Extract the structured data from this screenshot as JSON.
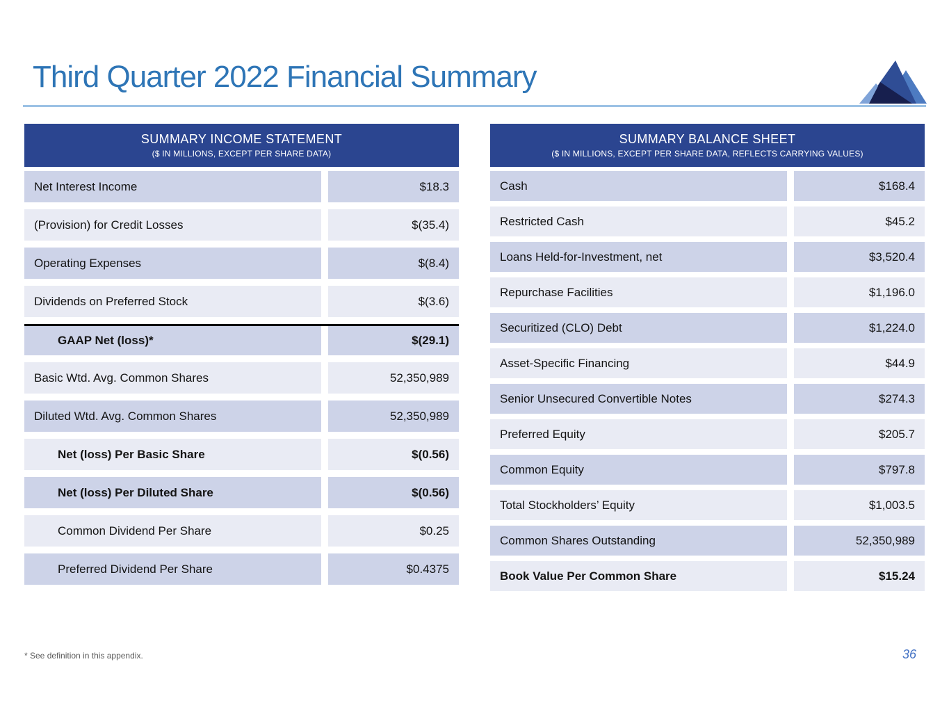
{
  "page": {
    "title": "Third Quarter 2022 Financial Summary",
    "footnote": "* See definition in this appendix.",
    "page_number": "36"
  },
  "income_statement": {
    "title": "SUMMARY INCOME STATEMENT",
    "subtitle": "($ IN MILLIONS, EXCEPT PER SHARE DATA)",
    "rows": [
      {
        "label": "Net Interest Income",
        "value": "$18.3"
      },
      {
        "label": "(Provision) for Credit Losses",
        "value": "$(35.4)"
      },
      {
        "label": "Operating Expenses",
        "value": "$(8.4)"
      },
      {
        "label": "Dividends on Preferred Stock",
        "value": "$(3.6)"
      },
      {
        "label": "GAAP Net (loss)*",
        "value": "$(29.1)",
        "bold": true,
        "indent": true,
        "separator_above": true
      },
      {
        "label": "Basic Wtd. Avg. Common Shares",
        "value": "52,350,989"
      },
      {
        "label": "Diluted Wtd. Avg. Common Shares",
        "value": "52,350,989"
      },
      {
        "label": "Net (loss) Per Basic Share",
        "value": "$(0.56)",
        "bold": true,
        "indent": true
      },
      {
        "label": "Net (loss) Per Diluted Share",
        "value": "$(0.56)",
        "bold": true,
        "indent": true
      },
      {
        "label": "Common Dividend Per Share",
        "value": "$0.25",
        "indent": true
      },
      {
        "label": "Preferred Dividend Per Share",
        "value": "$0.4375",
        "indent": true
      }
    ]
  },
  "balance_sheet": {
    "title": "SUMMARY BALANCE SHEET",
    "subtitle": "($ IN MILLIONS, EXCEPT PER SHARE DATA, REFLECTS CARRYING VALUES)",
    "rows": [
      {
        "label": "Cash",
        "value": "$168.4"
      },
      {
        "label": "Restricted Cash",
        "value": "$45.2"
      },
      {
        "label": "Loans Held-for-Investment, net",
        "value": "$3,520.4"
      },
      {
        "label": "Repurchase Facilities",
        "value": "$1,196.0"
      },
      {
        "label": "Securitized (CLO) Debt",
        "value": "$1,224.0"
      },
      {
        "label": "Asset-Specific Financing",
        "value": "$44.9"
      },
      {
        "label": "Senior Unsecured Convertible Notes",
        "value": "$274.3"
      },
      {
        "label": "Preferred Equity",
        "value": "$205.7"
      },
      {
        "label": "Common Equity",
        "value": "$797.8"
      },
      {
        "label": "Total Stockholders’ Equity",
        "value": "$1,003.5"
      },
      {
        "label": "Common Shares Outstanding",
        "value": "52,350,989"
      },
      {
        "label": "Book Value Per Common Share",
        "value": "$15.24",
        "bold": true
      }
    ]
  },
  "colors": {
    "title_blue": "#2E75B6",
    "rule_light_blue": "#9CC2E5",
    "table_header_navy": "#2B4590",
    "row_shade_dark": "#CDD3E8",
    "row_shade_light": "#E9EBF4",
    "page_number_blue": "#4472C4",
    "footnote_gray": "#595959",
    "logo_main_blue": "#2F4D95",
    "logo_light_blue": "#4D7BC1",
    "logo_pale_blue": "#7FA3D8",
    "logo_dark_navy": "#171F4E"
  },
  "logo": {
    "name": "mountain-logo"
  }
}
